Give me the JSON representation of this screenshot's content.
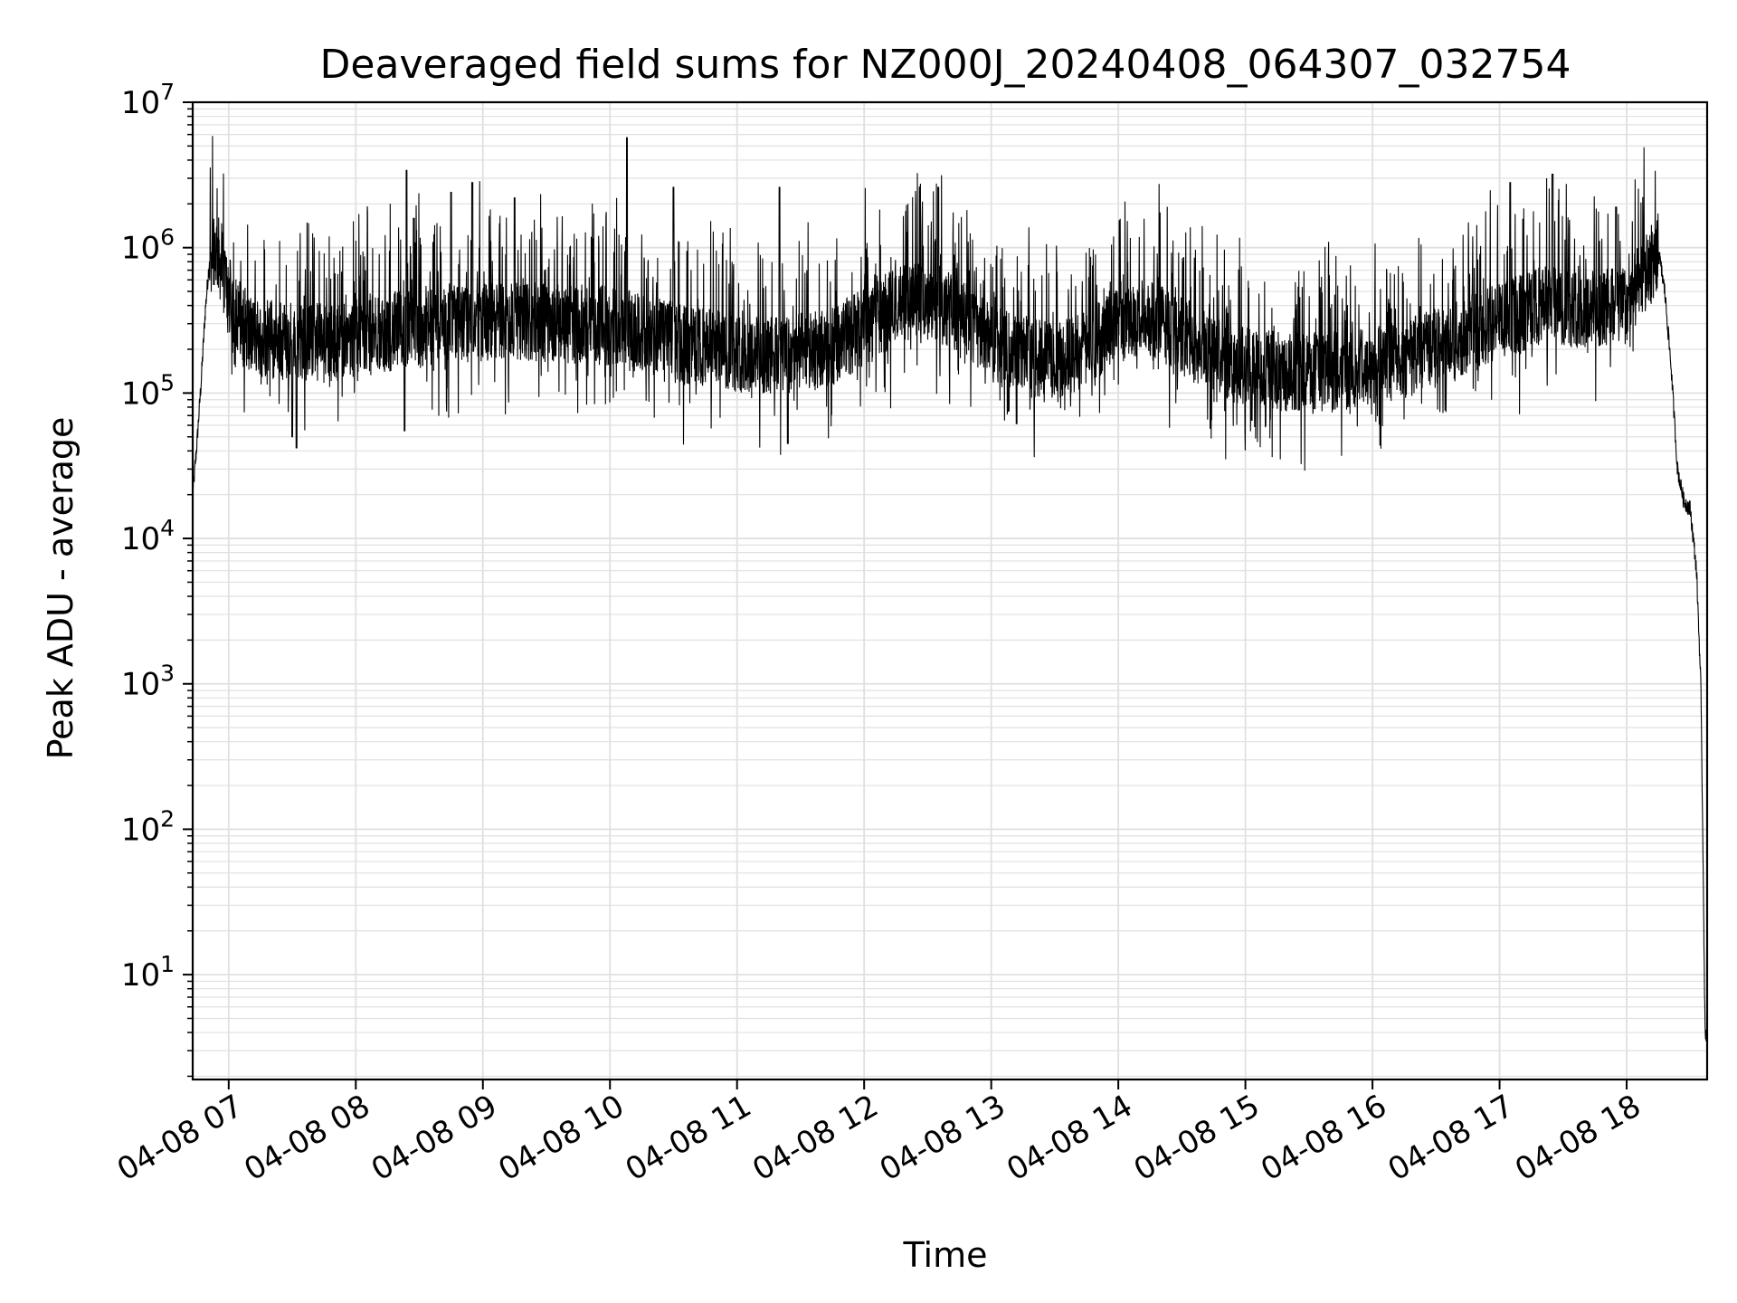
{
  "chart_data": {
    "type": "line",
    "title": "Deaveraged field sums for NZ000J_20240408_064307_032754",
    "xlabel": "Time",
    "ylabel": "Peak ADU - average",
    "y_scale": "log",
    "ylim": [
      1.9,
      10000000
    ],
    "xlim": [
      "2024-04-08 06:43",
      "2024-04-08 18:38"
    ],
    "grid": true,
    "grid_minor": true,
    "line_color": "#000000",
    "grid_color": "#e0e0e0",
    "x_ticks": [
      {
        "value": "2024-04-08 07:00",
        "label": "04-08 07"
      },
      {
        "value": "2024-04-08 08:00",
        "label": "04-08 08"
      },
      {
        "value": "2024-04-08 09:00",
        "label": "04-08 09"
      },
      {
        "value": "2024-04-08 10:00",
        "label": "04-08 10"
      },
      {
        "value": "2024-04-08 11:00",
        "label": "04-08 11"
      },
      {
        "value": "2024-04-08 12:00",
        "label": "04-08 12"
      },
      {
        "value": "2024-04-08 13:00",
        "label": "04-08 13"
      },
      {
        "value": "2024-04-08 14:00",
        "label": "04-08 14"
      },
      {
        "value": "2024-04-08 15:00",
        "label": "04-08 15"
      },
      {
        "value": "2024-04-08 16:00",
        "label": "04-08 16"
      },
      {
        "value": "2024-04-08 17:00",
        "label": "04-08 17"
      },
      {
        "value": "2024-04-08 18:00",
        "label": "04-08 18"
      }
    ],
    "y_ticks": [
      {
        "value": 10,
        "base": "10",
        "exp": "1"
      },
      {
        "value": 100,
        "base": "10",
        "exp": "2"
      },
      {
        "value": 1000,
        "base": "10",
        "exp": "3"
      },
      {
        "value": 10000,
        "base": "10",
        "exp": "4"
      },
      {
        "value": 100000,
        "base": "10",
        "exp": "5"
      },
      {
        "value": 1000000,
        "base": "10",
        "exp": "6"
      },
      {
        "value": 10000000,
        "base": "10",
        "exp": "7"
      }
    ],
    "series": [
      {
        "x": [
          "2024-04-08 06:43",
          "2024-04-08 06:45",
          "2024-04-08 06:47",
          "2024-04-08 06:49",
          "2024-04-08 06:51",
          "2024-04-08 06:53",
          "2024-04-08 06:55",
          "2024-04-08 06:57",
          "2024-04-08 06:59",
          "2024-04-08 07:02",
          "2024-04-08 07:10",
          "2024-04-08 07:20",
          "2024-04-08 07:30",
          "2024-04-08 07:45",
          "2024-04-08 08:00",
          "2024-04-08 08:20",
          "2024-04-08 08:40",
          "2024-04-08 09:00",
          "2024-04-08 09:20",
          "2024-04-08 09:40",
          "2024-04-08 10:00",
          "2024-04-08 10:20",
          "2024-04-08 10:40",
          "2024-04-08 11:00",
          "2024-04-08 11:20",
          "2024-04-08 11:40",
          "2024-04-08 12:00",
          "2024-04-08 12:15",
          "2024-04-08 12:30",
          "2024-04-08 12:45",
          "2024-04-08 13:00",
          "2024-04-08 13:20",
          "2024-04-08 13:40",
          "2024-04-08 13:50",
          "2024-04-08 14:00",
          "2024-04-08 14:20",
          "2024-04-08 14:40",
          "2024-04-08 15:00",
          "2024-04-08 15:20",
          "2024-04-08 15:40",
          "2024-04-08 16:00",
          "2024-04-08 16:20",
          "2024-04-08 16:40",
          "2024-04-08 17:00",
          "2024-04-08 17:20",
          "2024-04-08 17:40",
          "2024-04-08 18:00",
          "2024-04-08 18:10",
          "2024-04-08 18:15",
          "2024-04-08 18:18",
          "2024-04-08 18:21",
          "2024-04-08 18:24",
          "2024-04-08 18:27",
          "2024-04-08 18:30",
          "2024-04-08 18:33",
          "2024-04-08 18:35",
          "2024-04-08 18:36",
          "2024-04-08 18:37",
          "2024-04-08 18:38"
        ],
        "values": [
          20000,
          45000,
          120000,
          380000,
          850000,
          1050000,
          900000,
          700000,
          550000,
          380000,
          260000,
          230000,
          230000,
          220000,
          240000,
          270000,
          300000,
          310000,
          310000,
          300000,
          290000,
          250000,
          210000,
          190000,
          180000,
          200000,
          280000,
          400000,
          460000,
          330000,
          220000,
          170000,
          180000,
          230000,
          330000,
          310000,
          200000,
          150000,
          140000,
          140000,
          150000,
          180000,
          230000,
          320000,
          400000,
          380000,
          400000,
          700000,
          950000,
          500000,
          150000,
          30000,
          18000,
          16000,
          6000,
          1000,
          80,
          4,
          4
        ],
        "spikes": [
          {
            "x": "2024-04-08 08:24",
            "value": 3400000
          },
          {
            "x": "2024-04-08 08:45",
            "value": 2400000
          },
          {
            "x": "2024-04-08 08:55",
            "value": 2800000
          },
          {
            "x": "2024-04-08 09:15",
            "value": 2200000
          },
          {
            "x": "2024-04-08 10:08",
            "value": 5700000
          },
          {
            "x": "2024-04-08 10:30",
            "value": 2600000
          },
          {
            "x": "2024-04-08 11:20",
            "value": 2600000
          },
          {
            "x": "2024-04-08 12:35",
            "value": 2600000
          },
          {
            "x": "2024-04-08 17:05",
            "value": 2800000
          },
          {
            "x": "2024-04-08 17:25",
            "value": 3200000
          },
          {
            "x": "2024-04-08 17:55",
            "value": 1900000
          }
        ],
        "dips": [
          {
            "x": "2024-04-08 07:30",
            "value": 50000
          },
          {
            "x": "2024-04-08 07:32",
            "value": 42000
          },
          {
            "x": "2024-04-08 08:23",
            "value": 55000
          },
          {
            "x": "2024-04-08 11:24",
            "value": 45000
          },
          {
            "x": "2024-04-08 13:08",
            "value": 75000
          },
          {
            "x": "2024-04-08 15:03",
            "value": 65000
          }
        ]
      }
    ]
  }
}
